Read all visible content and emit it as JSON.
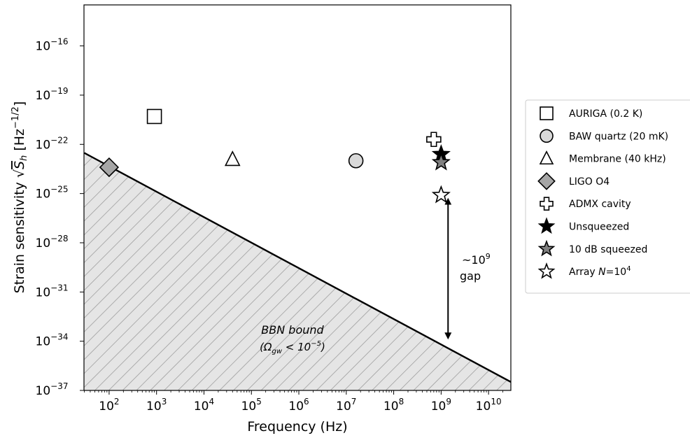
{
  "chart_data": {
    "type": "scatter",
    "xlabel": "Frequency (Hz)",
    "ylabel": {
      "main": "Strain sensitivity ",
      "sub": "h",
      "unit_pre": " [Hz",
      "unit_exp": "−1/2",
      "unit_post": "]"
    },
    "xscale": "log",
    "yscale": "log",
    "xlim_exp": [
      1.47,
      10.47
    ],
    "ylim_exp": [
      -37,
      -13.5
    ],
    "x_ticks": [
      {
        "base": "10",
        "exp": "2"
      },
      {
        "base": "10",
        "exp": "3"
      },
      {
        "base": "10",
        "exp": "4"
      },
      {
        "base": "10",
        "exp": "5"
      },
      {
        "base": "10",
        "exp": "6"
      },
      {
        "base": "10",
        "exp": "7"
      },
      {
        "base": "10",
        "exp": "8"
      },
      {
        "base": "10",
        "exp": "9"
      },
      {
        "base": "10",
        "exp": "10"
      }
    ],
    "y_ticks": [
      {
        "base": "10",
        "exp": "−16"
      },
      {
        "base": "10",
        "exp": "−19"
      },
      {
        "base": "10",
        "exp": "−22"
      },
      {
        "base": "10",
        "exp": "−25"
      },
      {
        "base": "10",
        "exp": "−28"
      },
      {
        "base": "10",
        "exp": "−31"
      },
      {
        "base": "10",
        "exp": "−34"
      },
      {
        "base": "10",
        "exp": "−37"
      }
    ],
    "grid": false,
    "legend_position": "outside-right",
    "series": [
      {
        "name": "AURIGA (0.2 K)",
        "marker": "square",
        "fill": "#ffffff",
        "x": 900,
        "y": 5e-21
      },
      {
        "name": "BAW quartz (20 mK)",
        "marker": "circle",
        "fill": "#d9d9d9",
        "x": 16000000,
        "y": 1e-23
      },
      {
        "name": "Membrane (40 kHz)",
        "marker": "triangle",
        "fill": "#ffffff",
        "x": 40000,
        "y": 1.2e-23
      },
      {
        "name": "LIGO O4",
        "marker": "diamond",
        "fill": "#a6a6a6",
        "x": 100,
        "y": 4e-24
      },
      {
        "name": "ADMX cavity",
        "marker": "plus",
        "fill": "#ffffff",
        "x": 700000000,
        "y": 2e-22
      },
      {
        "name": "Unsqueezed",
        "marker": "star",
        "fill": "#000000",
        "x": 1000000000,
        "y": 2.5e-23
      },
      {
        "name": "10 dB squeezed",
        "marker": "star",
        "fill": "#808080",
        "x": 1000000000,
        "y": 8e-24
      },
      {
        "name": "Array N=10⁴",
        "name_parts": {
          "pre": "Array ",
          "italic": "N",
          "post": "=10",
          "exp": "4"
        },
        "marker": "star",
        "fill": "#ffffff",
        "x": 1000000000,
        "y": 8e-26
      }
    ],
    "bbn_bound": {
      "line_x": [
        30,
        30000000000
      ],
      "line_y": [
        3e-23,
        3.2e-37
      ],
      "label": "BBN bound",
      "sublabel": {
        "pre": "(Ω",
        "sub": "gw",
        "mid": " < 10",
        "exp": "−5",
        "post": ")"
      }
    },
    "gap_annotation": {
      "x": 1400000000,
      "y_top": 5e-26,
      "y_bottom": 1.4e-34,
      "label_pre": "~10",
      "label_exp": "9",
      "label_line2": "gap"
    }
  }
}
